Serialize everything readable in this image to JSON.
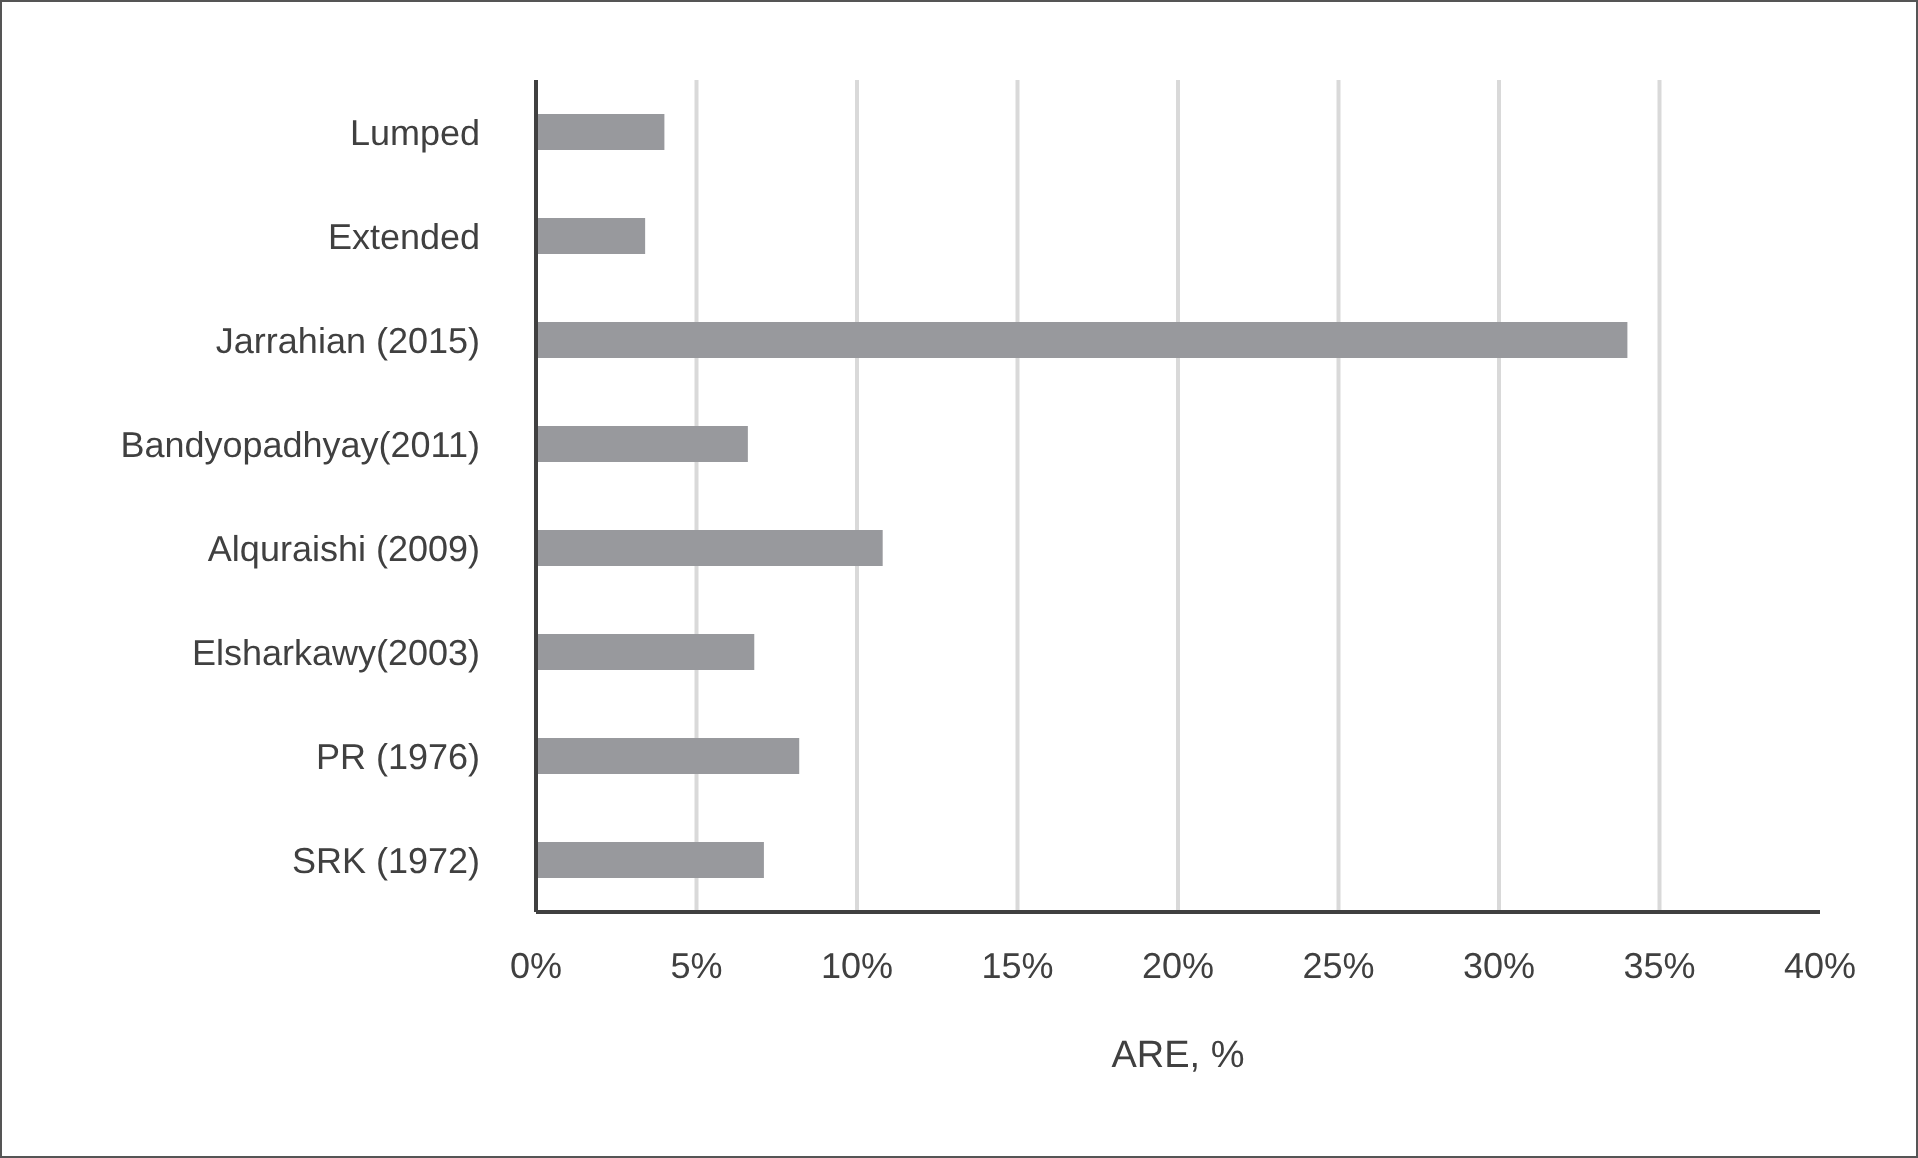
{
  "chart_data": {
    "type": "bar",
    "orientation": "horizontal",
    "xlabel": "ARE, %",
    "categories": [
      "Lumped",
      "Extended",
      "Jarrahian (2015)",
      "Bandyopadhyay(2011)",
      "Alquraishi (2009)",
      "Elsharkawy(2003)",
      "PR (1976)",
      "SRK (1972)"
    ],
    "values": [
      4.0,
      3.4,
      34.0,
      6.6,
      10.8,
      6.8,
      8.2,
      7.1
    ],
    "color": "#98999d",
    "xlim": [
      0,
      40
    ],
    "xticks": [
      {
        "value": 0,
        "label": "0%"
      },
      {
        "value": 5,
        "label": "5%"
      },
      {
        "value": 10,
        "label": "10%"
      },
      {
        "value": 15,
        "label": "15%"
      },
      {
        "value": 20,
        "label": "20%"
      },
      {
        "value": 25,
        "label": "25%"
      },
      {
        "value": 30,
        "label": "30%"
      },
      {
        "value": 35,
        "label": "35%"
      },
      {
        "value": 40,
        "label": "40%"
      }
    ],
    "grid": "x"
  }
}
